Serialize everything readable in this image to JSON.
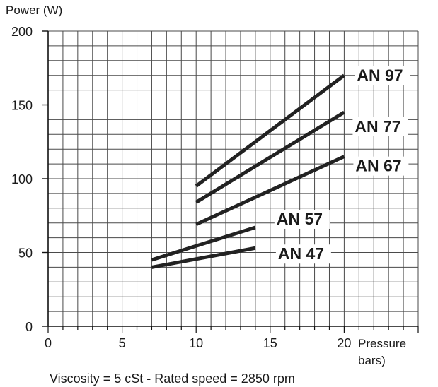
{
  "chart_data": {
    "type": "line",
    "ylabel": "Power (W)",
    "xlabel": "Pressure bars)",
    "xlabel_lines": [
      "Pressure",
      "bars)"
    ],
    "footnote": "Viscosity = 5 cSt  -  Rated speed = 2850 rpm",
    "xlim": [
      0,
      25
    ],
    "ylim": [
      0,
      200
    ],
    "x_ticks": [
      0,
      5,
      10,
      15,
      20
    ],
    "x_tick_labels": [
      "0",
      "5",
      "10",
      "15",
      "20"
    ],
    "y_ticks": [
      0,
      50,
      100,
      150,
      200
    ],
    "y_tick_labels": [
      "0",
      "50",
      "100",
      "150",
      "200"
    ],
    "grid": true,
    "series": [
      {
        "name": "AN 97",
        "x": [
          10,
          20
        ],
        "y": [
          95,
          170
        ]
      },
      {
        "name": "AN 77",
        "x": [
          10,
          20
        ],
        "y": [
          84,
          145
        ]
      },
      {
        "name": "AN 67",
        "x": [
          10,
          20
        ],
        "y": [
          69,
          115
        ]
      },
      {
        "name": "AN 57",
        "x": [
          7,
          14
        ],
        "y": [
          45,
          67
        ]
      },
      {
        "name": "AN 47",
        "x": [
          7,
          14
        ],
        "y": [
          40,
          53
        ]
      }
    ],
    "line_color": "#222222"
  }
}
